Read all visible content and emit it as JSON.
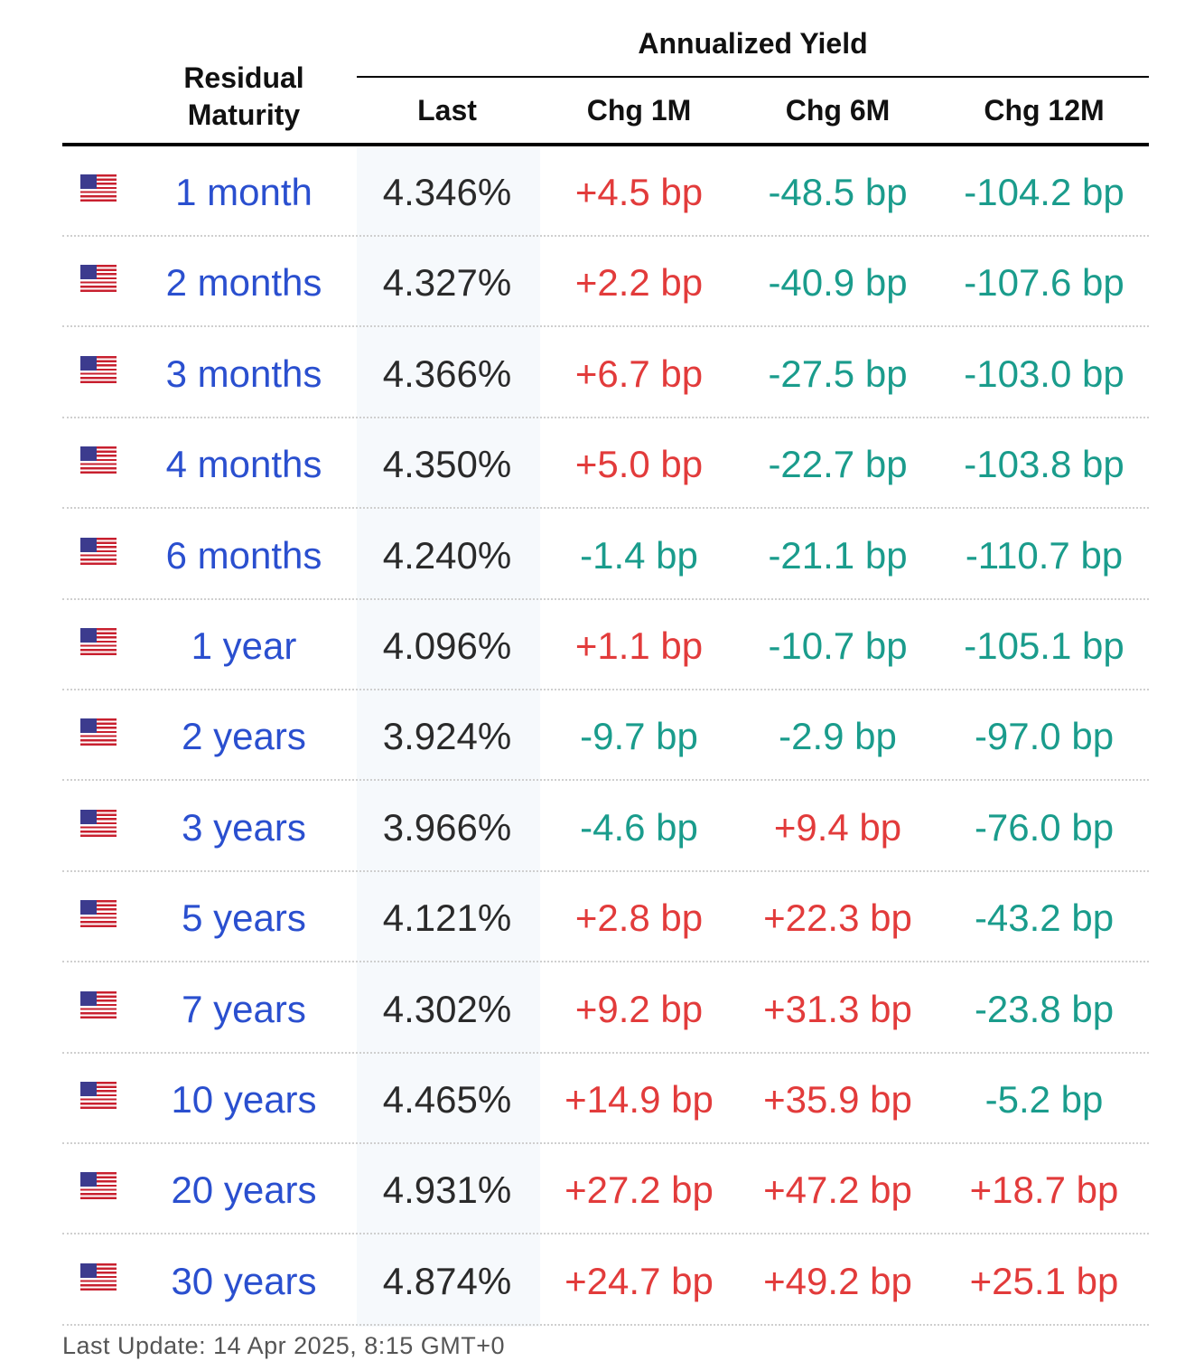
{
  "table": {
    "group_header": "Annualized Yield",
    "columns": {
      "maturity_line1": "Residual",
      "maturity_line2": "Maturity",
      "last": "Last",
      "chg_1m": "Chg 1M",
      "chg_6m": "Chg 6M",
      "chg_12m": "Chg 12M"
    },
    "colors": {
      "positive": "#e23b3b",
      "negative": "#1a9c8c",
      "maturity_link": "#2a4fcf"
    },
    "rows": [
      {
        "flag": "us-flag-icon",
        "maturity": "1 month",
        "last": "4.346%",
        "chg_1m": "+4.5 bp",
        "chg_6m": "-48.5 bp",
        "chg_12m": "-104.2 bp"
      },
      {
        "flag": "us-flag-icon",
        "maturity": "2 months",
        "last": "4.327%",
        "chg_1m": "+2.2 bp",
        "chg_6m": "-40.9 bp",
        "chg_12m": "-107.6 bp"
      },
      {
        "flag": "us-flag-icon",
        "maturity": "3 months",
        "last": "4.366%",
        "chg_1m": "+6.7 bp",
        "chg_6m": "-27.5 bp",
        "chg_12m": "-103.0 bp"
      },
      {
        "flag": "us-flag-icon",
        "maturity": "4 months",
        "last": "4.350%",
        "chg_1m": "+5.0 bp",
        "chg_6m": "-22.7 bp",
        "chg_12m": "-103.8 bp"
      },
      {
        "flag": "us-flag-icon",
        "maturity": "6 months",
        "last": "4.240%",
        "chg_1m": "-1.4 bp",
        "chg_6m": "-21.1 bp",
        "chg_12m": "-110.7 bp"
      },
      {
        "flag": "us-flag-icon",
        "maturity": "1 year",
        "last": "4.096%",
        "chg_1m": "+1.1 bp",
        "chg_6m": "-10.7 bp",
        "chg_12m": "-105.1 bp"
      },
      {
        "flag": "us-flag-icon",
        "maturity": "2 years",
        "last": "3.924%",
        "chg_1m": "-9.7 bp",
        "chg_6m": "-2.9 bp",
        "chg_12m": "-97.0 bp"
      },
      {
        "flag": "us-flag-icon",
        "maturity": "3 years",
        "last": "3.966%",
        "chg_1m": "-4.6 bp",
        "chg_6m": "+9.4 bp",
        "chg_12m": "-76.0 bp"
      },
      {
        "flag": "us-flag-icon",
        "maturity": "5 years",
        "last": "4.121%",
        "chg_1m": "+2.8 bp",
        "chg_6m": "+22.3 bp",
        "chg_12m": "-43.2 bp"
      },
      {
        "flag": "us-flag-icon",
        "maturity": "7 years",
        "last": "4.302%",
        "chg_1m": "+9.2 bp",
        "chg_6m": "+31.3 bp",
        "chg_12m": "-23.8 bp"
      },
      {
        "flag": "us-flag-icon",
        "maturity": "10 years",
        "last": "4.465%",
        "chg_1m": "+14.9 bp",
        "chg_6m": "+35.9 bp",
        "chg_12m": "-5.2 bp"
      },
      {
        "flag": "us-flag-icon",
        "maturity": "20 years",
        "last": "4.931%",
        "chg_1m": "+27.2 bp",
        "chg_6m": "+47.2 bp",
        "chg_12m": "+18.7 bp"
      },
      {
        "flag": "us-flag-icon",
        "maturity": "30 years",
        "last": "4.874%",
        "chg_1m": "+24.7 bp",
        "chg_6m": "+49.2 bp",
        "chg_12m": "+25.1 bp"
      }
    ]
  },
  "footer": {
    "last_update": "Last Update: 14 Apr 2025, 8:15 GMT+0"
  }
}
